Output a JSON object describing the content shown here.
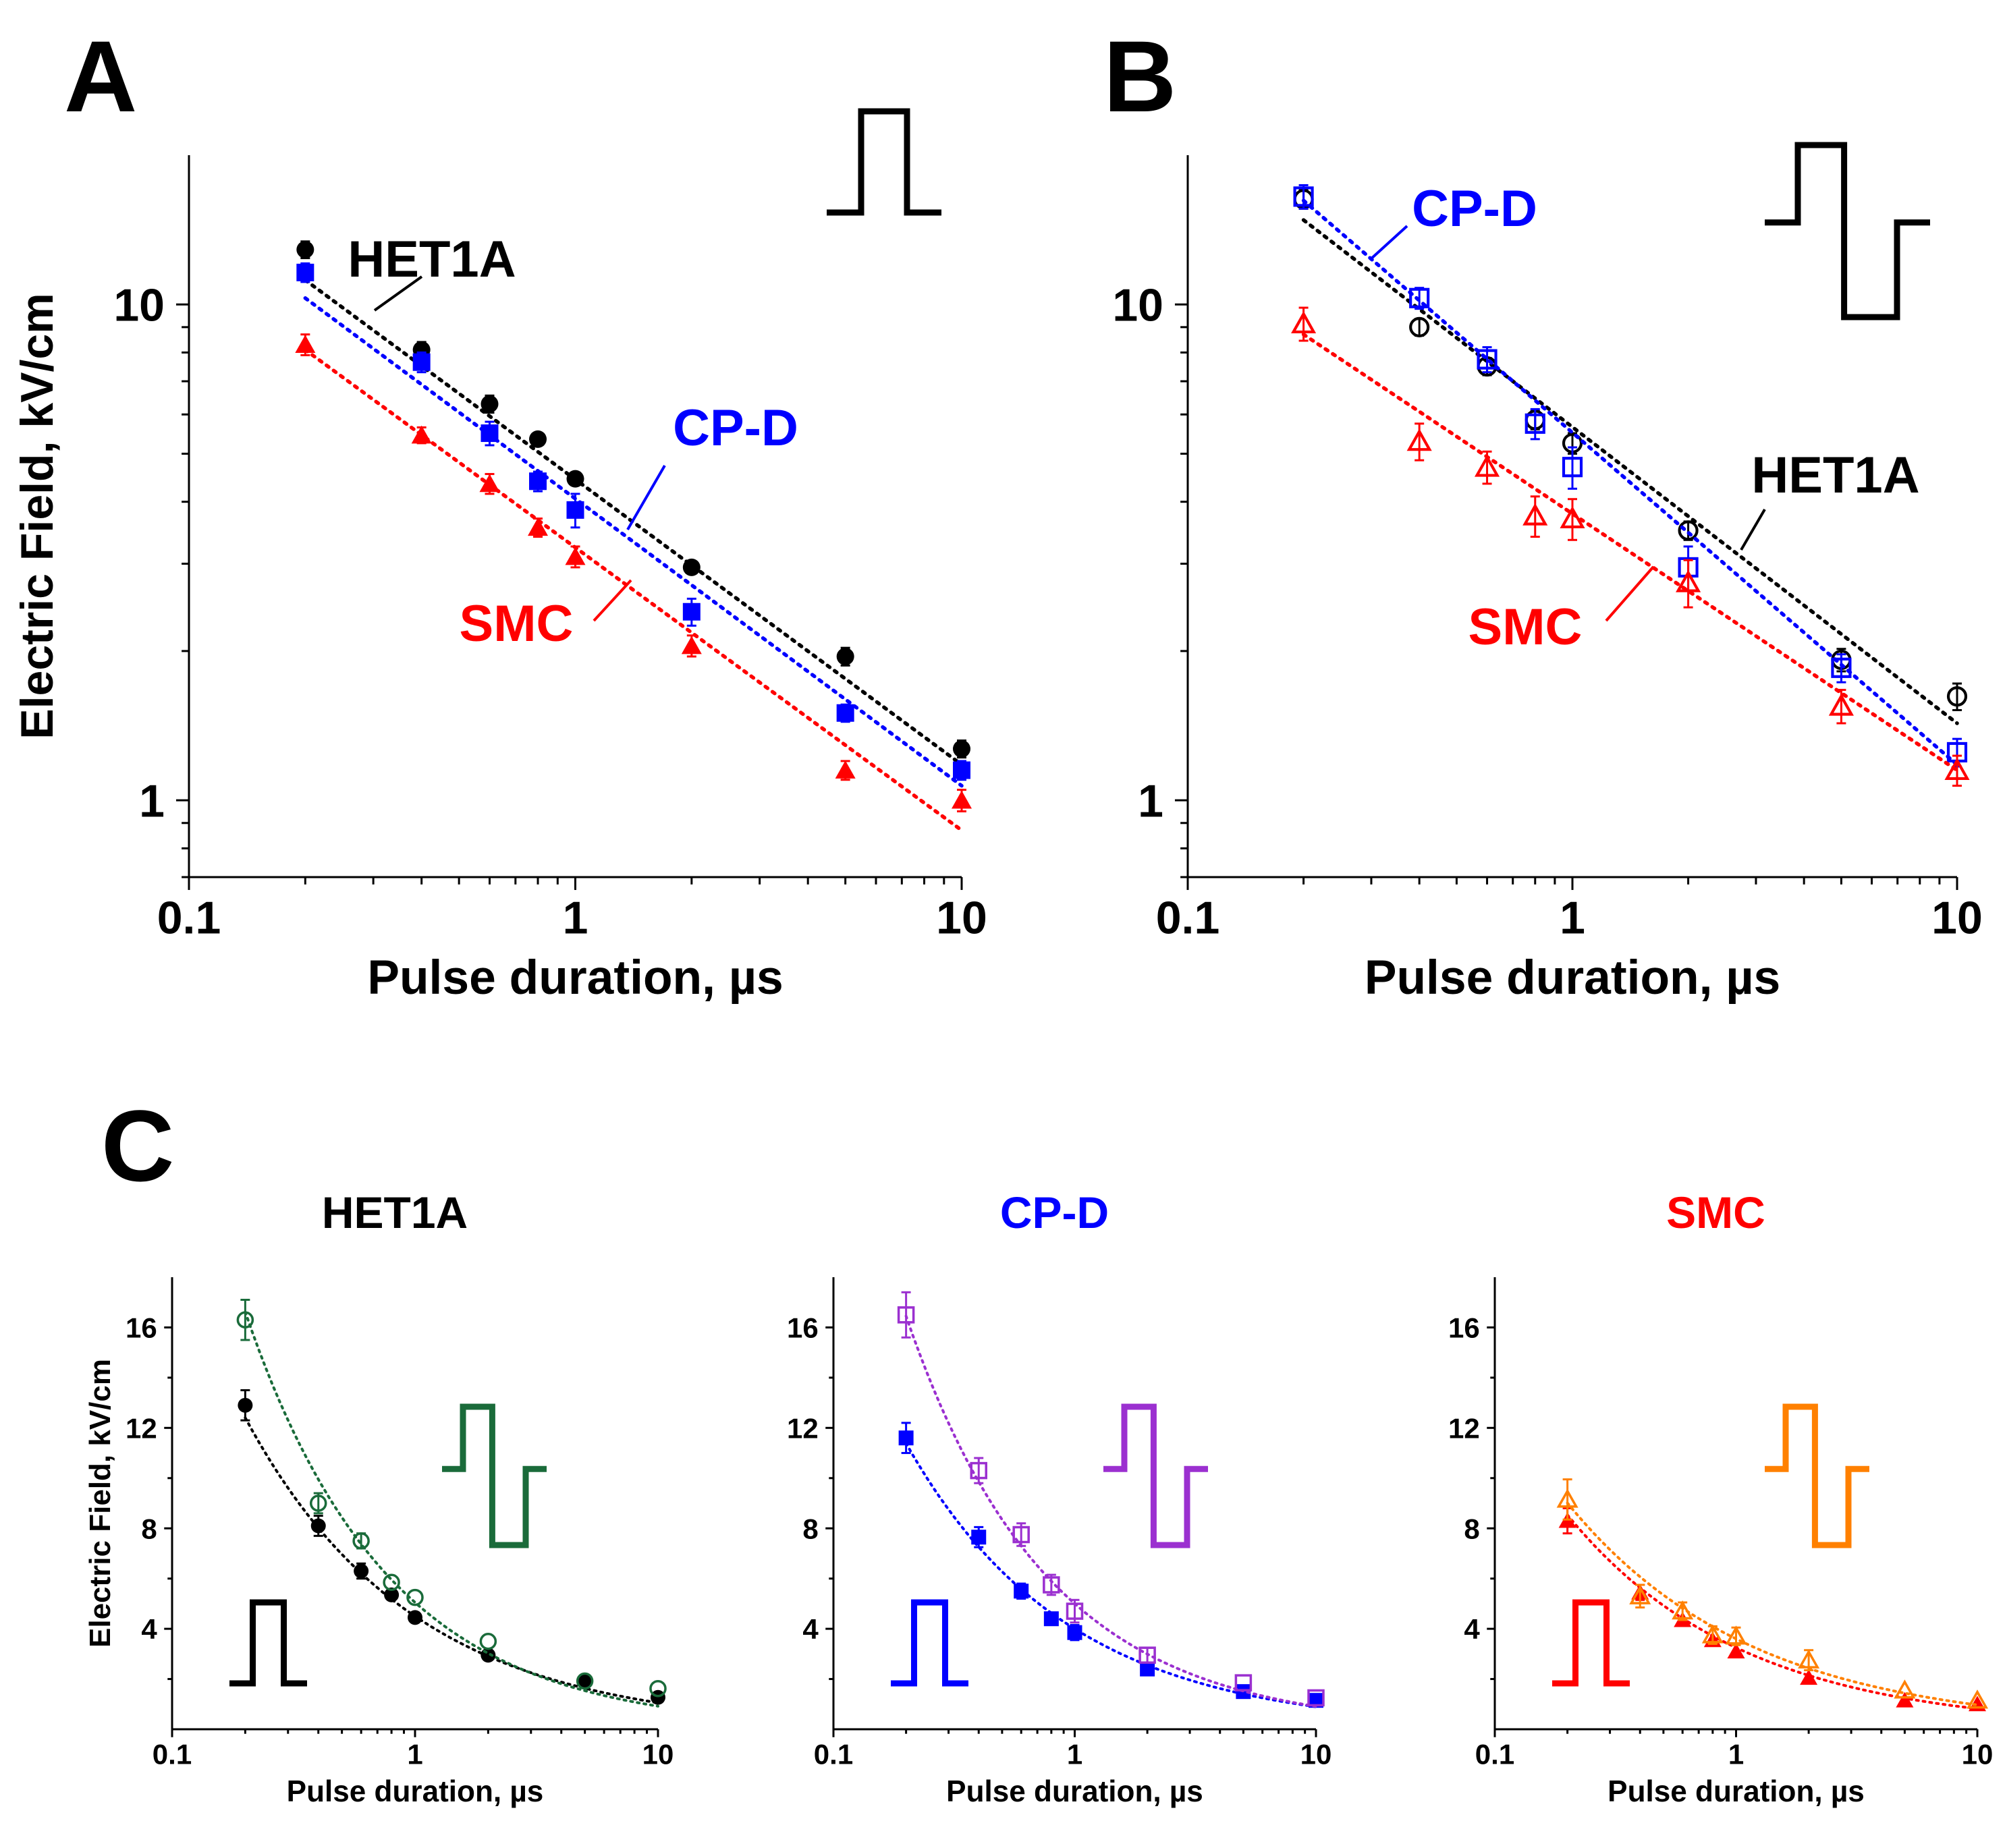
{
  "figure": {
    "panel_letters": [
      "A",
      "B",
      "C"
    ],
    "colors": {
      "het1a": "#000000",
      "het1a_bipolar": "#1a6b3a",
      "cpd": "#0000ff",
      "cpd_bipolar": "#9b30d0",
      "smc": "#ff0000",
      "smc_bipolar": "#ff8000"
    },
    "icons": [
      "monopolar-pulse-icon",
      "bipolar-pulse-icon"
    ]
  },
  "chart_data": [
    {
      "id": "A",
      "type": "scatter",
      "panel_label": "A",
      "pulse_shape": "monopolar",
      "x_scale": "log",
      "y_scale": "log",
      "xlim": [
        0.1,
        10
      ],
      "ylim": [
        0.7,
        20
      ],
      "xlabel": "Pulse duration, µs",
      "ylabel": "Electric Field, kV/cm",
      "xticks": [
        0.1,
        1,
        10
      ],
      "xtick_labels": [
        "0.1",
        "1",
        "10"
      ],
      "yticks": [
        1,
        10
      ],
      "ytick_labels": [
        "1",
        "10"
      ],
      "series": [
        {
          "name": "HET1A",
          "color": "#000000",
          "marker": "circle",
          "filled": true,
          "x": [
            0.2,
            0.4,
            0.6,
            0.8,
            1,
            2,
            5,
            10
          ],
          "y": [
            12.9,
            8.1,
            6.3,
            5.35,
            4.45,
            2.95,
            1.95,
            1.27
          ],
          "err": [
            0.5,
            0.3,
            0.25,
            0.15,
            0.15,
            0.1,
            0.08,
            0.05
          ],
          "fit": {
            "x": [
              0.2,
              10
            ],
            "y": [
              11.2,
              1.18
            ]
          }
        },
        {
          "name": "CP-D",
          "color": "#0000ff",
          "marker": "square",
          "filled": true,
          "x": [
            0.2,
            0.4,
            0.6,
            0.8,
            1,
            2,
            5,
            10
          ],
          "y": [
            11.6,
            7.65,
            5.5,
            4.4,
            3.85,
            2.4,
            1.5,
            1.15
          ],
          "err": [
            0.5,
            0.35,
            0.3,
            0.2,
            0.3,
            0.15,
            0.06,
            0.05
          ],
          "fit": {
            "x": [
              0.2,
              10
            ],
            "y": [
              10.3,
              1.07
            ]
          }
        },
        {
          "name": "SMC",
          "color": "#ff0000",
          "marker": "triangle",
          "filled": true,
          "x": [
            0.2,
            0.4,
            0.6,
            0.8,
            1,
            2,
            5,
            10
          ],
          "y": [
            8.3,
            5.45,
            4.35,
            3.55,
            3.1,
            2.05,
            1.15,
            1.0
          ],
          "err": [
            0.4,
            0.2,
            0.2,
            0.15,
            0.15,
            0.1,
            0.05,
            0.05
          ],
          "fit": {
            "x": [
              0.2,
              10
            ],
            "y": [
              8.1,
              0.87
            ]
          }
        }
      ],
      "annotations": [
        {
          "text": "HET1A",
          "series": "HET1A"
        },
        {
          "text": "CP-D",
          "series": "CP-D"
        },
        {
          "text": "SMC",
          "series": "SMC"
        }
      ]
    },
    {
      "id": "B",
      "type": "scatter",
      "panel_label": "B",
      "pulse_shape": "bipolar",
      "x_scale": "log",
      "y_scale": "log",
      "xlim": [
        0.1,
        10
      ],
      "ylim": [
        0.7,
        20
      ],
      "xlabel": "Pulse duration, µs",
      "ylabel": "",
      "xticks": [
        0.1,
        1,
        10
      ],
      "xtick_labels": [
        "0.1",
        "1",
        "10"
      ],
      "yticks": [
        1,
        10
      ],
      "ytick_labels": [
        "1",
        "10"
      ],
      "series": [
        {
          "name": "HET1A",
          "color": "#000000",
          "marker": "circle",
          "filled": false,
          "x": [
            0.2,
            0.4,
            0.6,
            0.8,
            1,
            2,
            5,
            10
          ],
          "y": [
            16.3,
            9.0,
            7.5,
            5.85,
            5.25,
            3.5,
            1.92,
            1.62
          ],
          "err": [
            0.7,
            0.35,
            0.3,
            0.25,
            0.25,
            0.15,
            0.1,
            0.1
          ],
          "fit": {
            "x": [
              0.2,
              10
            ],
            "y": [
              14.8,
              1.43
            ]
          }
        },
        {
          "name": "CP-D",
          "color": "#0000ff",
          "marker": "square",
          "filled": false,
          "x": [
            0.2,
            0.4,
            0.6,
            0.8,
            1,
            2,
            5,
            10
          ],
          "y": [
            16.5,
            10.3,
            7.75,
            5.75,
            4.7,
            2.95,
            1.85,
            1.25
          ],
          "err": [
            0.9,
            0.5,
            0.45,
            0.4,
            0.45,
            0.3,
            0.12,
            0.08
          ],
          "fit": {
            "x": [
              0.2,
              10
            ],
            "y": [
              16.2,
              1.18
            ]
          }
        },
        {
          "name": "SMC",
          "color": "#ff0000",
          "marker": "triangle",
          "filled": false,
          "x": [
            0.2,
            0.4,
            0.6,
            0.8,
            1,
            2,
            5,
            10
          ],
          "y": [
            9.15,
            5.3,
            4.7,
            3.75,
            3.7,
            2.75,
            1.55,
            1.15
          ],
          "err": [
            0.7,
            0.45,
            0.35,
            0.35,
            0.35,
            0.3,
            0.12,
            0.08
          ],
          "fit": {
            "x": [
              0.2,
              10
            ],
            "y": [
              8.7,
              1.15
            ]
          }
        }
      ],
      "annotations": [
        {
          "text": "CP-D",
          "series": "CP-D"
        },
        {
          "text": "HET1A",
          "series": "HET1A"
        },
        {
          "text": "SMC",
          "series": "SMC"
        }
      ]
    },
    {
      "id": "C1",
      "type": "scatter",
      "panel_label": "C",
      "title": "HET1A",
      "title_color": "#000000",
      "x_scale": "log",
      "y_scale": "linear",
      "xlim": [
        0.1,
        10
      ],
      "ylim": [
        0,
        18
      ],
      "xlabel": "Pulse duration, µs",
      "ylabel": "Electric Field, kV/cm",
      "xticks": [
        0.1,
        1,
        10
      ],
      "xtick_labels": [
        "0.1",
        "1",
        "10"
      ],
      "yticks": [
        4,
        8,
        12,
        16
      ],
      "ytick_labels": [
        "4",
        "8",
        "12",
        "16"
      ],
      "series": [
        {
          "name": "HET1A monopolar",
          "color": "#000000",
          "marker": "circle",
          "filled": true,
          "x": [
            0.2,
            0.4,
            0.6,
            0.8,
            1,
            2,
            5,
            10
          ],
          "y": [
            12.9,
            8.1,
            6.3,
            5.35,
            4.45,
            2.95,
            1.95,
            1.27
          ],
          "err": [
            0.6,
            0.4,
            0.3,
            0.2,
            0.2,
            0.15,
            0.1,
            0.1
          ],
          "fit_power": {
            "a": 4.5,
            "b": -0.63
          }
        },
        {
          "name": "HET1A bipolar",
          "color": "#1a6b3a",
          "marker": "circle",
          "filled": false,
          "x": [
            0.2,
            0.4,
            0.6,
            0.8,
            1,
            2,
            5,
            10
          ],
          "y": [
            16.3,
            9.0,
            7.5,
            5.85,
            5.25,
            3.5,
            1.92,
            1.62
          ],
          "err": [
            0.8,
            0.4,
            0.3,
            0.25,
            0.25,
            0.2,
            0.15,
            0.15
          ],
          "fit_power": {
            "a": 5.05,
            "b": -0.74
          }
        }
      ],
      "pulse_icon_colors": {
        "monopolar": "#000000",
        "bipolar": "#1a6b3a"
      }
    },
    {
      "id": "C2",
      "type": "scatter",
      "title": "CP-D",
      "title_color": "#0000ff",
      "x_scale": "log",
      "y_scale": "linear",
      "xlim": [
        0.1,
        10
      ],
      "ylim": [
        0,
        18
      ],
      "xlabel": "Pulse duration, µs",
      "ylabel": "",
      "xticks": [
        0.1,
        1,
        10
      ],
      "xtick_labels": [
        "0.1",
        "1",
        "10"
      ],
      "yticks": [
        4,
        8,
        12,
        16
      ],
      "ytick_labels": [
        "4",
        "8",
        "12",
        "16"
      ],
      "series": [
        {
          "name": "CP-D monopolar",
          "color": "#0000ff",
          "marker": "square",
          "filled": true,
          "x": [
            0.2,
            0.4,
            0.6,
            0.8,
            1,
            2,
            5,
            10
          ],
          "y": [
            11.6,
            7.65,
            5.5,
            4.4,
            3.85,
            2.4,
            1.5,
            1.15
          ],
          "err": [
            0.6,
            0.4,
            0.3,
            0.2,
            0.3,
            0.2,
            0.1,
            0.1
          ],
          "fit_power": {
            "a": 4.0,
            "b": -0.65
          }
        },
        {
          "name": "CP-D bipolar",
          "color": "#9b30d0",
          "marker": "square",
          "filled": false,
          "x": [
            0.2,
            0.4,
            0.6,
            0.8,
            1,
            2,
            5,
            10
          ],
          "y": [
            16.5,
            10.3,
            7.75,
            5.75,
            4.7,
            2.95,
            1.85,
            1.25
          ],
          "err": [
            0.9,
            0.5,
            0.45,
            0.4,
            0.45,
            0.3,
            0.15,
            0.1
          ],
          "fit_power": {
            "a": 5.0,
            "b": -0.74
          }
        }
      ],
      "pulse_icon_colors": {
        "monopolar": "#0000ff",
        "bipolar": "#9b30d0"
      }
    },
    {
      "id": "C3",
      "type": "scatter",
      "title": "SMC",
      "title_color": "#ff0000",
      "x_scale": "log",
      "y_scale": "linear",
      "xlim": [
        0.1,
        10
      ],
      "ylim": [
        0,
        18
      ],
      "xlabel": "Pulse duration, µs",
      "ylabel": "",
      "xticks": [
        0.1,
        1,
        10
      ],
      "xtick_labels": [
        "0.1",
        "1",
        "10"
      ],
      "yticks": [
        4,
        8,
        12,
        16
      ],
      "ytick_labels": [
        "4",
        "8",
        "12",
        "16"
      ],
      "series": [
        {
          "name": "SMC monopolar",
          "color": "#ff0000",
          "marker": "triangle",
          "filled": true,
          "x": [
            0.2,
            0.4,
            0.6,
            0.8,
            1,
            2,
            5,
            10
          ],
          "y": [
            8.3,
            5.45,
            4.35,
            3.55,
            3.1,
            2.05,
            1.15,
            1.0
          ],
          "err": [
            0.5,
            0.3,
            0.25,
            0.2,
            0.2,
            0.15,
            0.1,
            0.1
          ],
          "fit_power": {
            "a": 3.25,
            "b": -0.6
          }
        },
        {
          "name": "SMC bipolar",
          "color": "#ff8000",
          "marker": "triangle",
          "filled": false,
          "x": [
            0.2,
            0.4,
            0.6,
            0.8,
            1,
            2,
            5,
            10
          ],
          "y": [
            9.15,
            5.3,
            4.7,
            3.75,
            3.7,
            2.75,
            1.55,
            1.15
          ],
          "err": [
            0.8,
            0.45,
            0.35,
            0.35,
            0.35,
            0.4,
            0.15,
            0.1
          ],
          "fit_power": {
            "a": 3.6,
            "b": -0.57
          }
        }
      ],
      "pulse_icon_colors": {
        "monopolar": "#ff0000",
        "bipolar": "#ff8000"
      }
    }
  ]
}
